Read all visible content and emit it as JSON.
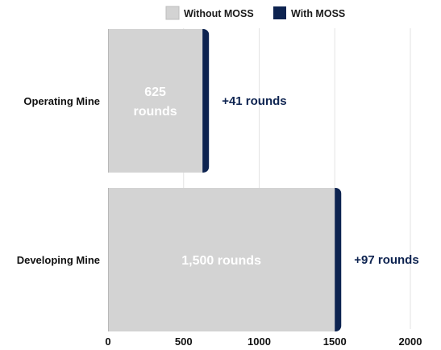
{
  "legend": [
    {
      "label": "Without MOSS",
      "color": "#d3d3d3"
    },
    {
      "label": "With MOSS",
      "color": "#0d2350"
    }
  ],
  "chart_data": {
    "type": "bar",
    "orientation": "horizontal",
    "stacked": true,
    "categories": [
      "Operating Mine",
      "Developing Mine"
    ],
    "series": [
      {
        "name": "Without MOSS",
        "values": [
          625,
          1500
        ],
        "color": "#d3d3d3"
      },
      {
        "name": "With MOSS",
        "values": [
          41,
          97
        ],
        "color": "#0d2350"
      }
    ],
    "bar_labels": [
      {
        "inside": [
          "625",
          "rounds"
        ],
        "outside": "+41 rounds"
      },
      {
        "inside": [
          "1,500 rounds"
        ],
        "outside": "+97 rounds"
      }
    ],
    "xlim": [
      0,
      2000
    ],
    "xticks": [
      0,
      500,
      1000,
      1500,
      2000
    ],
    "xtick_labels": [
      "0",
      "500",
      "1000",
      "1500",
      "2000"
    ],
    "grid": "vertical",
    "legend_position": "top",
    "title": "",
    "xlabel": "",
    "ylabel": ""
  }
}
